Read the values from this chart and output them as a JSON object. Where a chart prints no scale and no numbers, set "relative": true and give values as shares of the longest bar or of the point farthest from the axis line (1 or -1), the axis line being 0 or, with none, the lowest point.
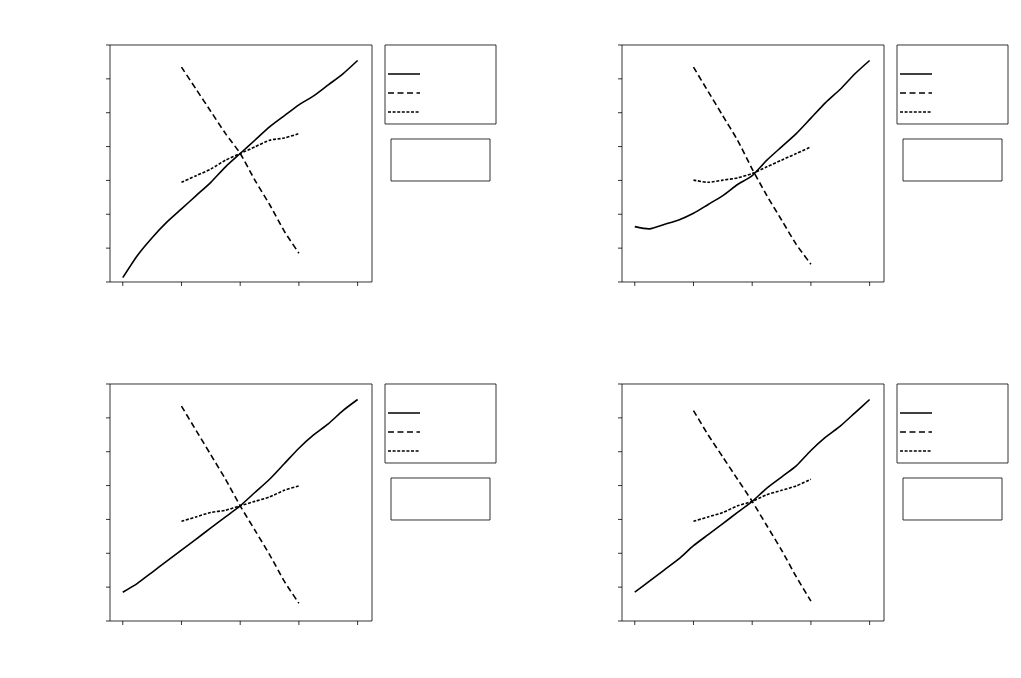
{
  "chart_data": [
    {
      "type": "line",
      "relative": true,
      "marker": "none",
      "categories": [
        null,
        null,
        null,
        null,
        null,
        null,
        null,
        null,
        null,
        null,
        null,
        null,
        null,
        null,
        null,
        null,
        null
      ],
      "series": [
        {
          "color": "#000000",
          "line_style": "solid",
          "values": [
            0.02,
            0.12,
            0.2,
            0.27,
            0.33,
            0.39,
            0.45,
            0.52,
            0.58,
            0.64,
            0.7,
            0.75,
            0.8,
            0.84,
            0.89,
            0.94,
            1
          ]
        },
        {
          "color": "#000000",
          "line_style": "dashed",
          "values": [
            null,
            null,
            null,
            null,
            0.97,
            0.87,
            0.77,
            0.67,
            0.58,
            0.46,
            0.35,
            0.23,
            0.13,
            null,
            null,
            null,
            null
          ]
        },
        {
          "color": "#000000",
          "line_style": "dotted",
          "values": [
            null,
            null,
            null,
            null,
            0.45,
            0.48,
            0.51,
            0.55,
            0.58,
            0.61,
            0.64,
            0.65,
            0.67,
            null,
            null,
            null,
            null
          ]
        }
      ]
    },
    {
      "type": "line",
      "relative": true,
      "marker": "none",
      "categories": [
        null,
        null,
        null,
        null,
        null,
        null,
        null,
        null,
        null,
        null,
        null,
        null,
        null,
        null,
        null,
        null,
        null
      ],
      "series": [
        {
          "color": "#000000",
          "line_style": "solid",
          "values": [
            0.25,
            0.24,
            0.26,
            0.28,
            0.31,
            0.35,
            0.39,
            0.44,
            0.48,
            0.55,
            0.61,
            0.67,
            0.74,
            0.81,
            0.87,
            0.94,
            1
          ]
        },
        {
          "color": "#000000",
          "line_style": "dashed",
          "values": [
            null,
            null,
            null,
            null,
            0.97,
            0.86,
            0.75,
            0.64,
            0.51,
            0.39,
            0.28,
            0.17,
            0.08,
            null,
            null,
            null,
            null
          ]
        },
        {
          "color": "#000000",
          "line_style": "dotted",
          "values": [
            null,
            null,
            null,
            null,
            0.46,
            0.45,
            0.46,
            0.47,
            0.49,
            0.52,
            0.55,
            0.58,
            0.61,
            null,
            null,
            null,
            null
          ]
        }
      ]
    },
    {
      "type": "line",
      "relative": true,
      "marker": "none",
      "categories": [
        null,
        null,
        null,
        null,
        null,
        null,
        null,
        null,
        null,
        null,
        null,
        null,
        null,
        null,
        null,
        null,
        null
      ],
      "series": [
        {
          "color": "#000000",
          "line_style": "solid",
          "values": [
            0.13,
            0.17,
            0.22,
            0.27,
            0.32,
            0.37,
            0.42,
            0.47,
            0.52,
            0.58,
            0.64,
            0.71,
            0.78,
            0.84,
            0.89,
            0.95,
            1
          ]
        },
        {
          "color": "#000000",
          "line_style": "dashed",
          "values": [
            null,
            null,
            null,
            null,
            0.97,
            0.86,
            0.75,
            0.64,
            0.52,
            0.41,
            0.3,
            0.18,
            0.08,
            null,
            null,
            null,
            null
          ]
        },
        {
          "color": "#000000",
          "line_style": "dotted",
          "values": [
            null,
            null,
            null,
            null,
            0.45,
            0.47,
            0.49,
            0.5,
            0.52,
            0.54,
            0.56,
            0.59,
            0.61,
            null,
            null,
            null,
            null
          ]
        }
      ]
    },
    {
      "type": "line",
      "relative": true,
      "marker": "none",
      "categories": [
        null,
        null,
        null,
        null,
        null,
        null,
        null,
        null,
        null,
        null,
        null,
        null,
        null,
        null,
        null,
        null,
        null
      ],
      "series": [
        {
          "color": "#000000",
          "line_style": "solid",
          "values": [
            0.13,
            0.18,
            0.23,
            0.28,
            0.34,
            0.39,
            0.44,
            0.49,
            0.54,
            0.6,
            0.65,
            0.7,
            0.77,
            0.83,
            0.88,
            0.94,
            1
          ]
        },
        {
          "color": "#000000",
          "line_style": "dashed",
          "values": [
            null,
            null,
            null,
            null,
            0.95,
            0.84,
            0.74,
            0.64,
            0.54,
            0.43,
            0.32,
            0.2,
            0.09,
            null,
            null,
            null,
            null
          ]
        },
        {
          "color": "#000000",
          "line_style": "dotted",
          "values": [
            null,
            null,
            null,
            null,
            0.45,
            0.47,
            0.49,
            0.52,
            0.54,
            0.57,
            0.59,
            0.61,
            0.64,
            null,
            null,
            null,
            null
          ]
        }
      ]
    }
  ]
}
